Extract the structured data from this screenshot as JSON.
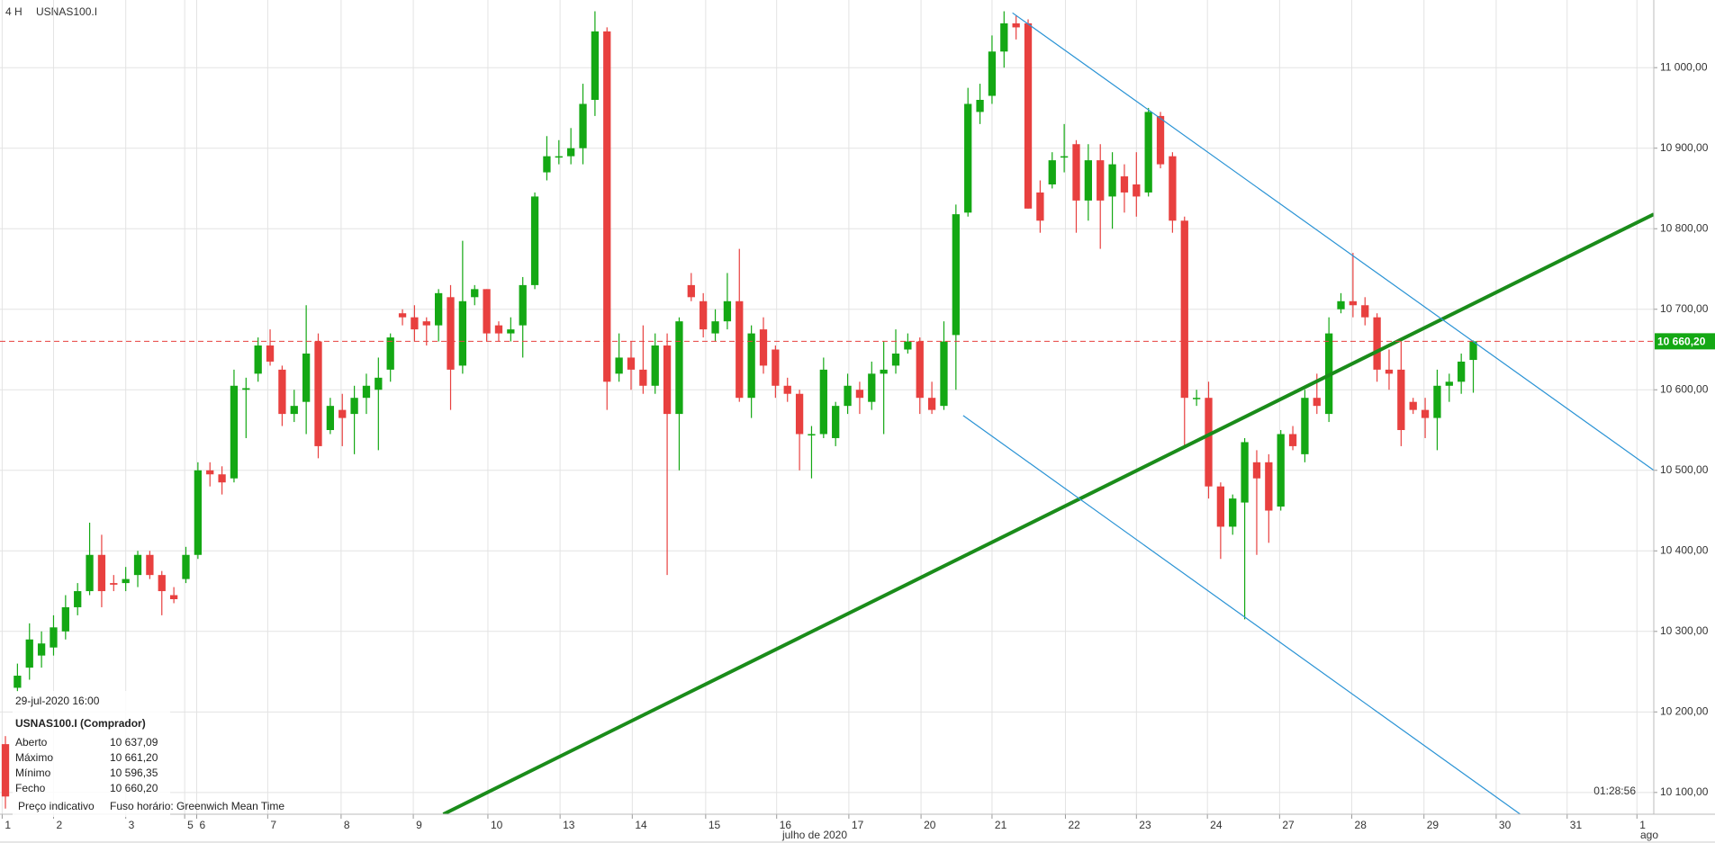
{
  "chart_data": {
    "type": "candlestick",
    "timeframe": "4 H",
    "symbol": "USNAS100.I",
    "up_color": "#14a814",
    "down_color": "#e8403f",
    "open": [
      10160,
      10230,
      10255,
      10270,
      10280,
      10300,
      10330,
      10350,
      10395,
      10360,
      10360,
      10370,
      10395,
      10370,
      10345,
      10365,
      10395,
      10500,
      10495,
      10490,
      10600,
      10620,
      10655,
      10625,
      10570,
      10585,
      10660,
      10550,
      10575,
      10570,
      10590,
      10600,
      10625,
      10695,
      10690,
      10685,
      10680,
      10715,
      10630,
      10715,
      10725,
      10680,
      10670,
      10680,
      10730,
      10870,
      10890,
      10890,
      10900,
      10960,
      11045,
      10620,
      10640,
      10625,
      10605,
      10655,
      10570,
      10730,
      10710,
      10670,
      10685,
      10710,
      10590,
      10675,
      10650,
      10605,
      10595,
      10545,
      10545,
      10540,
      10580,
      10600,
      10585,
      10620,
      10630,
      10650,
      10660,
      10590,
      10580,
      10668,
      10820,
      10945,
      10965,
      11020,
      11055,
      11055,
      10845,
      10855,
      10890,
      10905,
      10835,
      10885,
      10840,
      10865,
      10855,
      10845,
      10940,
      10890,
      10810,
      10590,
      10590,
      10480,
      10430,
      10460,
      10510,
      10510,
      10455,
      10545,
      10520,
      10590,
      10570,
      10700,
      10710,
      10705,
      10690,
      10625,
      10625,
      10585,
      10575,
      10565,
      10605,
      10610,
      10637.09
    ],
    "high": [
      10170,
      10260,
      10310,
      10300,
      10320,
      10345,
      10360,
      10435,
      10420,
      10370,
      10380,
      10400,
      10400,
      10375,
      10355,
      10405,
      10510,
      10510,
      10505,
      10625,
      10615,
      10665,
      10675,
      10630,
      10600,
      10705,
      10670,
      10590,
      10595,
      10605,
      10620,
      10640,
      10670,
      10700,
      10705,
      10690,
      10725,
      10730,
      10785,
      10730,
      10725,
      10685,
      10690,
      10740,
      10845,
      10915,
      10910,
      10925,
      10980,
      11070,
      11050,
      10670,
      10660,
      10680,
      10670,
      10670,
      10690,
      10745,
      10720,
      10700,
      10745,
      10775,
      10680,
      10690,
      10655,
      10615,
      10600,
      10555,
      10640,
      10585,
      10620,
      10610,
      10635,
      10660,
      10675,
      10670,
      10665,
      10610,
      10685,
      10830,
      10975,
      10980,
      11040,
      11070,
      11065,
      11060,
      10860,
      10895,
      10930,
      10910,
      10905,
      10905,
      10895,
      10880,
      10895,
      10950,
      10945,
      10895,
      10815,
      10600,
      10610,
      10485,
      10470,
      10540,
      10525,
      10520,
      10550,
      10555,
      10600,
      10620,
      10690,
      10720,
      10770,
      10715,
      10695,
      10650,
      10660,
      10590,
      10590,
      10625,
      10620,
      10645,
      10661.2
    ],
    "low": [
      10080,
      10225,
      10240,
      10255,
      10270,
      10290,
      10320,
      10345,
      10330,
      10350,
      10350,
      10355,
      10365,
      10320,
      10335,
      10360,
      10390,
      10480,
      10470,
      10485,
      10540,
      10610,
      10630,
      10555,
      10560,
      10545,
      10515,
      10545,
      10530,
      10520,
      10570,
      10525,
      10610,
      10680,
      10660,
      10655,
      10660,
      10575,
      10620,
      10705,
      10660,
      10660,
      10660,
      10640,
      10725,
      10860,
      10880,
      10880,
      10880,
      10940,
      10575,
      10610,
      10600,
      10595,
      10595,
      10370,
      10500,
      10710,
      10665,
      10660,
      10675,
      10585,
      10565,
      10620,
      10590,
      10585,
      10500,
      10490,
      10540,
      10530,
      10570,
      10570,
      10575,
      10545,
      10620,
      10645,
      10570,
      10570,
      10575,
      10600,
      10815,
      10930,
      10955,
      11000,
      11035,
      10825,
      10795,
      10850,
      10870,
      10795,
      10810,
      10775,
      10800,
      10820,
      10815,
      10840,
      10875,
      10795,
      10530,
      10580,
      10465,
      10390,
      10420,
      10315,
      10395,
      10410,
      10450,
      10525,
      10510,
      10570,
      10560,
      10695,
      10690,
      10680,
      10610,
      10600,
      10530,
      10570,
      10540,
      10525,
      10585,
      10595,
      10596.35
    ],
    "close": [
      10095,
      10245,
      10290,
      10285,
      10305,
      10330,
      10350,
      10395,
      10350,
      10358,
      10365,
      10395,
      10370,
      10350,
      10340,
      10395,
      10500,
      10495,
      10485,
      10605,
      10602,
      10655,
      10635,
      10570,
      10580,
      10645,
      10530,
      10580,
      10565,
      10590,
      10605,
      10615,
      10665,
      10690,
      10675,
      10680,
      10720,
      10625,
      10710,
      10725,
      10670,
      10670,
      10675,
      10730,
      10840,
      10890,
      10890,
      10900,
      10955,
      11045,
      10610,
      10640,
      10625,
      10605,
      10655,
      10570,
      10685,
      10715,
      10675,
      10685,
      10710,
      10590,
      10670,
      10630,
      10605,
      10595,
      10545,
      10545,
      10625,
      10580,
      10605,
      10590,
      10620,
      10625,
      10645,
      10660,
      10590,
      10575,
      10660,
      10818,
      10955,
      10960,
      11020,
      11055,
      11050,
      10825,
      10810,
      10885,
      10890,
      10835,
      10885,
      10835,
      10880,
      10845,
      10840,
      10945,
      10880,
      10810,
      10590,
      10590,
      10480,
      10430,
      10465,
      10535,
      10490,
      10450,
      10545,
      10530,
      10590,
      10580,
      10670,
      10710,
      10705,
      10690,
      10625,
      10620,
      10550,
      10575,
      10565,
      10605,
      10610,
      10635,
      10660.2
    ],
    "xlim": [
      -0.45,
      137
    ],
    "xticks": [
      {
        "value": -0.27,
        "label": "1"
      },
      {
        "value": 4.0,
        "label": "2"
      },
      {
        "value": 10.0,
        "label": "3"
      },
      {
        "value": 14.9,
        "label": "5"
      },
      {
        "value": 15.9,
        "label": "6"
      },
      {
        "value": 21.8,
        "label": "7"
      },
      {
        "value": 27.9,
        "label": "8"
      },
      {
        "value": 33.9,
        "label": "9"
      },
      {
        "value": 40.1,
        "label": "10"
      },
      {
        "value": 46.1,
        "label": "13"
      },
      {
        "value": 52.1,
        "label": "14"
      },
      {
        "value": 58.2,
        "label": "15"
      },
      {
        "value": 64.1,
        "label": "16"
      },
      {
        "value": 70.1,
        "label": "17"
      },
      {
        "value": 76.1,
        "label": "20"
      },
      {
        "value": 82.0,
        "label": "21"
      },
      {
        "value": 88.1,
        "label": "22"
      },
      {
        "value": 94.0,
        "label": "23"
      },
      {
        "value": 99.9,
        "label": "24"
      },
      {
        "value": 105.9,
        "label": "27"
      },
      {
        "value": 111.9,
        "label": "28"
      },
      {
        "value": 117.9,
        "label": "29"
      },
      {
        "value": 123.9,
        "label": "30"
      },
      {
        "value": 129.8,
        "label": "31"
      },
      {
        "value": 135.6,
        "label": "1"
      }
    ],
    "x_period_label": "julho de 2020",
    "x_next_period_label": "ago",
    "ylim": [
      10073,
      11084
    ],
    "yticks": [
      {
        "value": 10100,
        "label": "10 100,00"
      },
      {
        "value": 10200,
        "label": "10 200,00"
      },
      {
        "value": 10300,
        "label": "10 300,00"
      },
      {
        "value": 10400,
        "label": "10 400,00"
      },
      {
        "value": 10500,
        "label": "10 500,00"
      },
      {
        "value": 10600,
        "label": "10 600,00"
      },
      {
        "value": 10700,
        "label": "10 700,00"
      },
      {
        "value": 10800,
        "label": "10 800,00"
      },
      {
        "value": 10900,
        "label": "10 900,00"
      },
      {
        "value": 11000,
        "label": "11 000,00"
      }
    ],
    "grid": true,
    "last_price": {
      "value": 10660.2,
      "label": "10 660,20",
      "color": "#e8403f",
      "box_color": "#14a814"
    },
    "trend_lines": [
      {
        "color": "#1a8c1a",
        "width": 4,
        "x": [
          36.4,
          137
        ],
        "y": [
          10073,
          10818
        ]
      },
      {
        "color": "#2a93d5",
        "width": 1.2,
        "x": [
          83.7,
          137
        ],
        "y": [
          11068,
          10500
        ]
      },
      {
        "color": "#2a93d5",
        "width": 1.2,
        "x": [
          79.6,
          125.9
        ],
        "y": [
          10568,
          10073
        ]
      }
    ],
    "countdown": "01:28:56",
    "info": {
      "datetime": "29-jul-2020 16:00",
      "instrument": "USNAS100.I (Comprador)",
      "rows": [
        {
          "label": "Aberto",
          "value": "10 637,09"
        },
        {
          "label": "Máximo",
          "value": "10 661,20"
        },
        {
          "label": "Mínimo",
          "value": "10 596,35"
        },
        {
          "label": "Fecho",
          "value": "10 660,20"
        }
      ]
    },
    "footer_note": "Preço indicativo",
    "timezone": "Fuso horário: Greenwich Mean Time"
  }
}
